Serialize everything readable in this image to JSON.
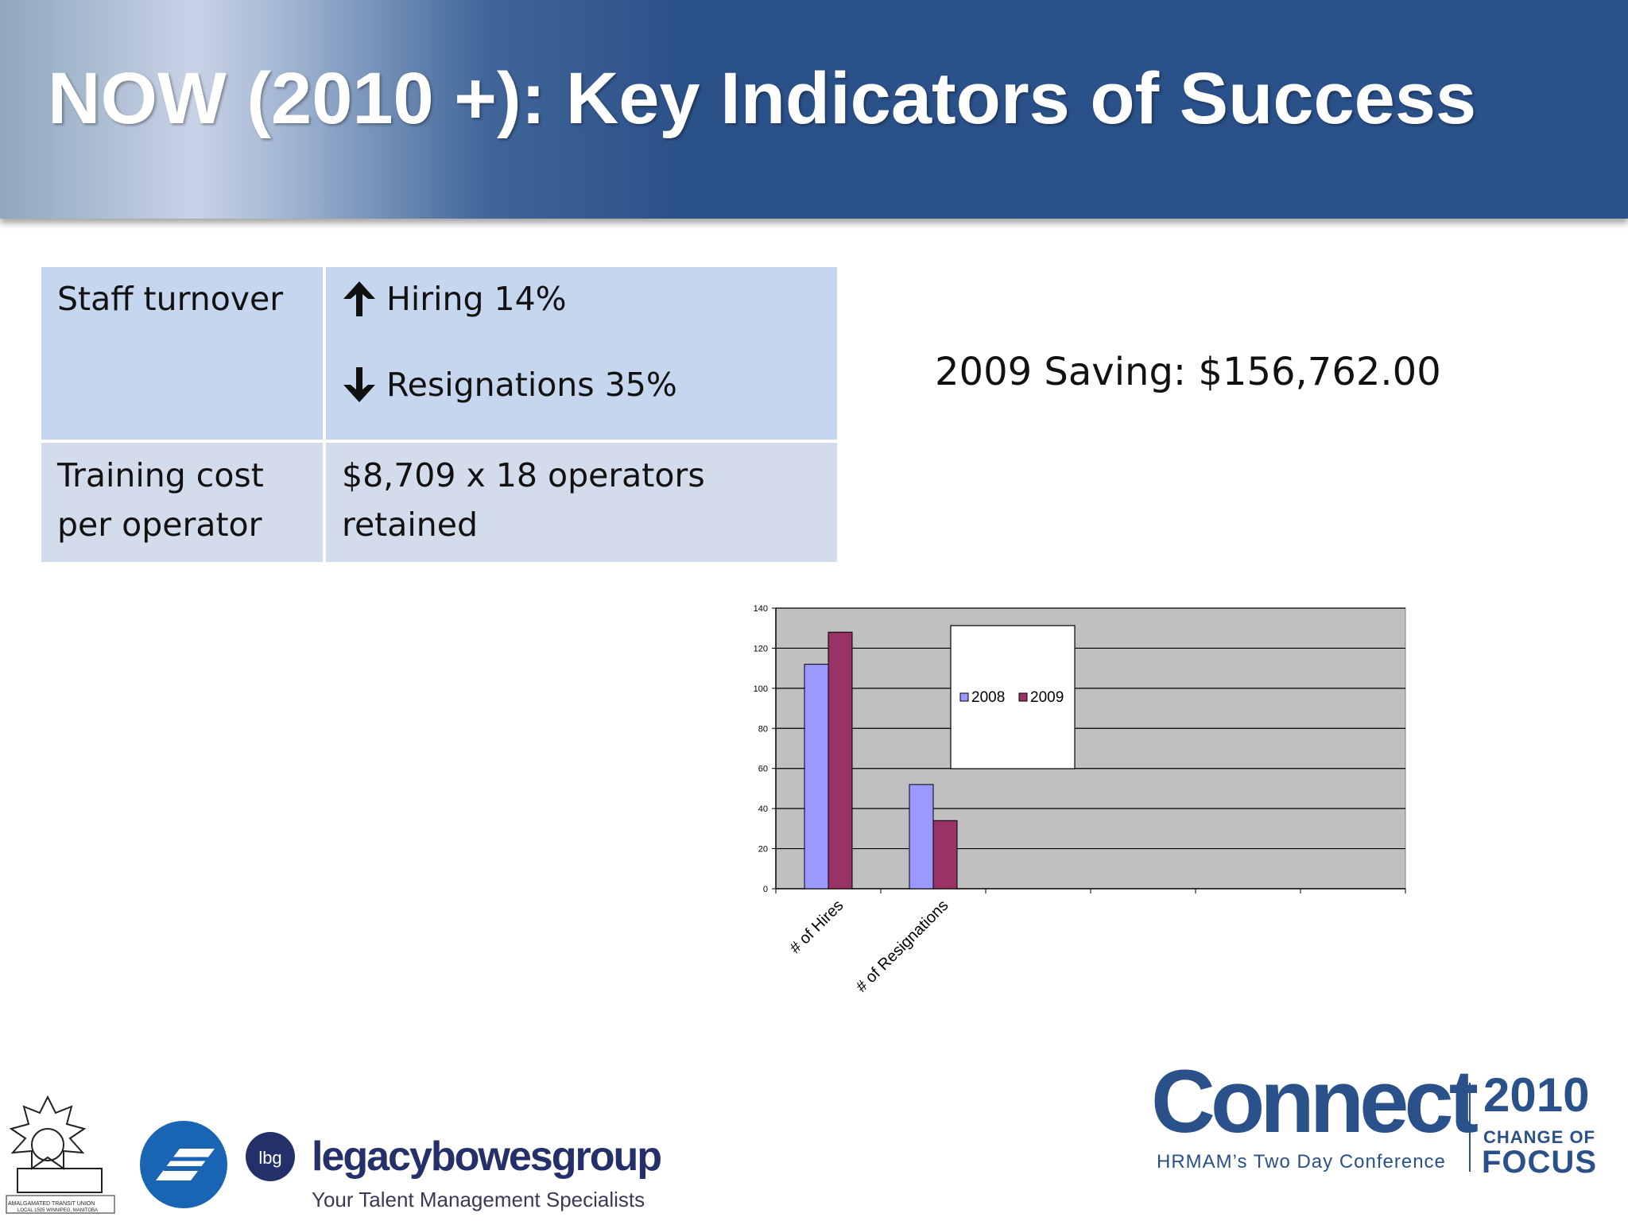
{
  "slide": {
    "title": "NOW (2010 +):  Key Indicators of Success"
  },
  "table": {
    "rows": [
      {
        "label": "Staff turnover",
        "lines": [
          {
            "icon": "arrow-up-icon",
            "text": "Hiring 14%"
          },
          {
            "icon": "arrow-down-icon",
            "text": "Resignations 35%"
          }
        ]
      },
      {
        "label_line1": "Training cost",
        "label_line2": "per operator",
        "value_line1": "$8,709 x 18 operators",
        "value_line2": "retained"
      }
    ]
  },
  "saving_text": "2009 Saving:  $156,762.00",
  "chart_data": {
    "type": "bar",
    "categories": [
      "# of Hires",
      "# of Resignations",
      "",
      "",
      "",
      ""
    ],
    "series": [
      {
        "name": "2008",
        "values": [
          112,
          52,
          null,
          null,
          null,
          null
        ],
        "color": "#9999ff"
      },
      {
        "name": "2009",
        "values": [
          128,
          34,
          null,
          null,
          null,
          null
        ],
        "color": "#993366"
      }
    ],
    "ylim": [
      0,
      140
    ],
    "yticks": [
      "0",
      "20",
      "40",
      "60",
      "80",
      "100",
      "120",
      "140"
    ],
    "grid": true,
    "legend": "upper-center",
    "background": "#c0c0c0"
  },
  "logos": {
    "atu": "AMALGAMATED TRANSIT UNION",
    "atu_sub": "LOCAL 1505 WINNIPEG, MANITOBA",
    "lbg_badge": "lbg",
    "lbg_name": "legacybowesgroup",
    "lbg_tagline": "Your Talent Management Specialists",
    "connect": "Connect",
    "connect_sub": "HRMAM’s Two Day Conference",
    "year": "2010",
    "change": "CHANGE OF",
    "focus": "FOCUS"
  },
  "colors": {
    "header_blue": "#2a5189",
    "row1_bg": "#c5d6ee",
    "row2_bg": "#d3dcea"
  }
}
